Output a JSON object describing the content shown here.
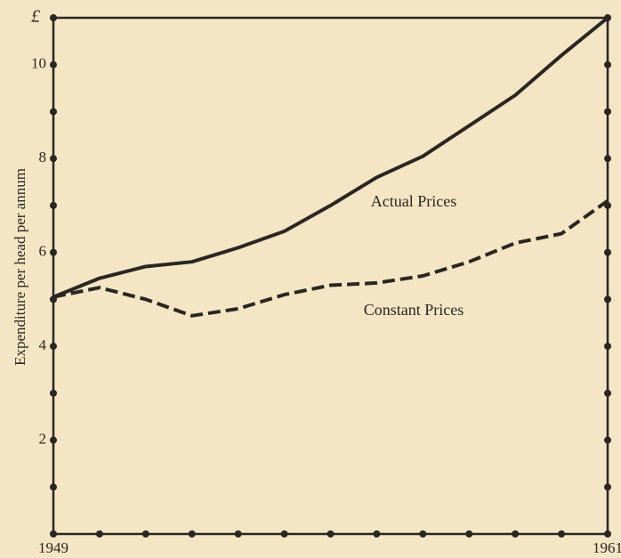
{
  "chart_data": {
    "type": "line",
    "y_label": "Expenditure per head per annum",
    "y_unit": "£",
    "x": [
      1949,
      1950,
      1951,
      1952,
      1953,
      1954,
      1955,
      1956,
      1957,
      1958,
      1959,
      1960,
      1961
    ],
    "xlim": [
      1949,
      1961
    ],
    "xticks": [
      1949,
      1961
    ],
    "x_minor_ticks": [
      1950,
      1951,
      1952,
      1953,
      1954,
      1955,
      1956,
      1957,
      1958,
      1959,
      1960
    ],
    "ylim": [
      0,
      11
    ],
    "yticks": [
      2,
      4,
      6,
      8,
      10
    ],
    "y_minor_ticks": [
      1,
      3,
      5,
      7,
      9,
      11
    ],
    "series": [
      {
        "name": "Actual Prices",
        "color": "#2a2622",
        "style": "solid",
        "values": [
          5.05,
          5.45,
          5.7,
          5.8,
          6.1,
          6.45,
          7.0,
          7.6,
          8.05,
          8.7,
          9.35,
          10.2,
          11.0
        ]
      },
      {
        "name": "Constant Prices",
        "color": "#2a2622",
        "style": "dashed",
        "values": [
          5.05,
          5.25,
          5.0,
          4.65,
          4.8,
          5.1,
          5.3,
          5.35,
          5.5,
          5.8,
          6.2,
          6.4,
          7.1
        ]
      }
    ]
  }
}
